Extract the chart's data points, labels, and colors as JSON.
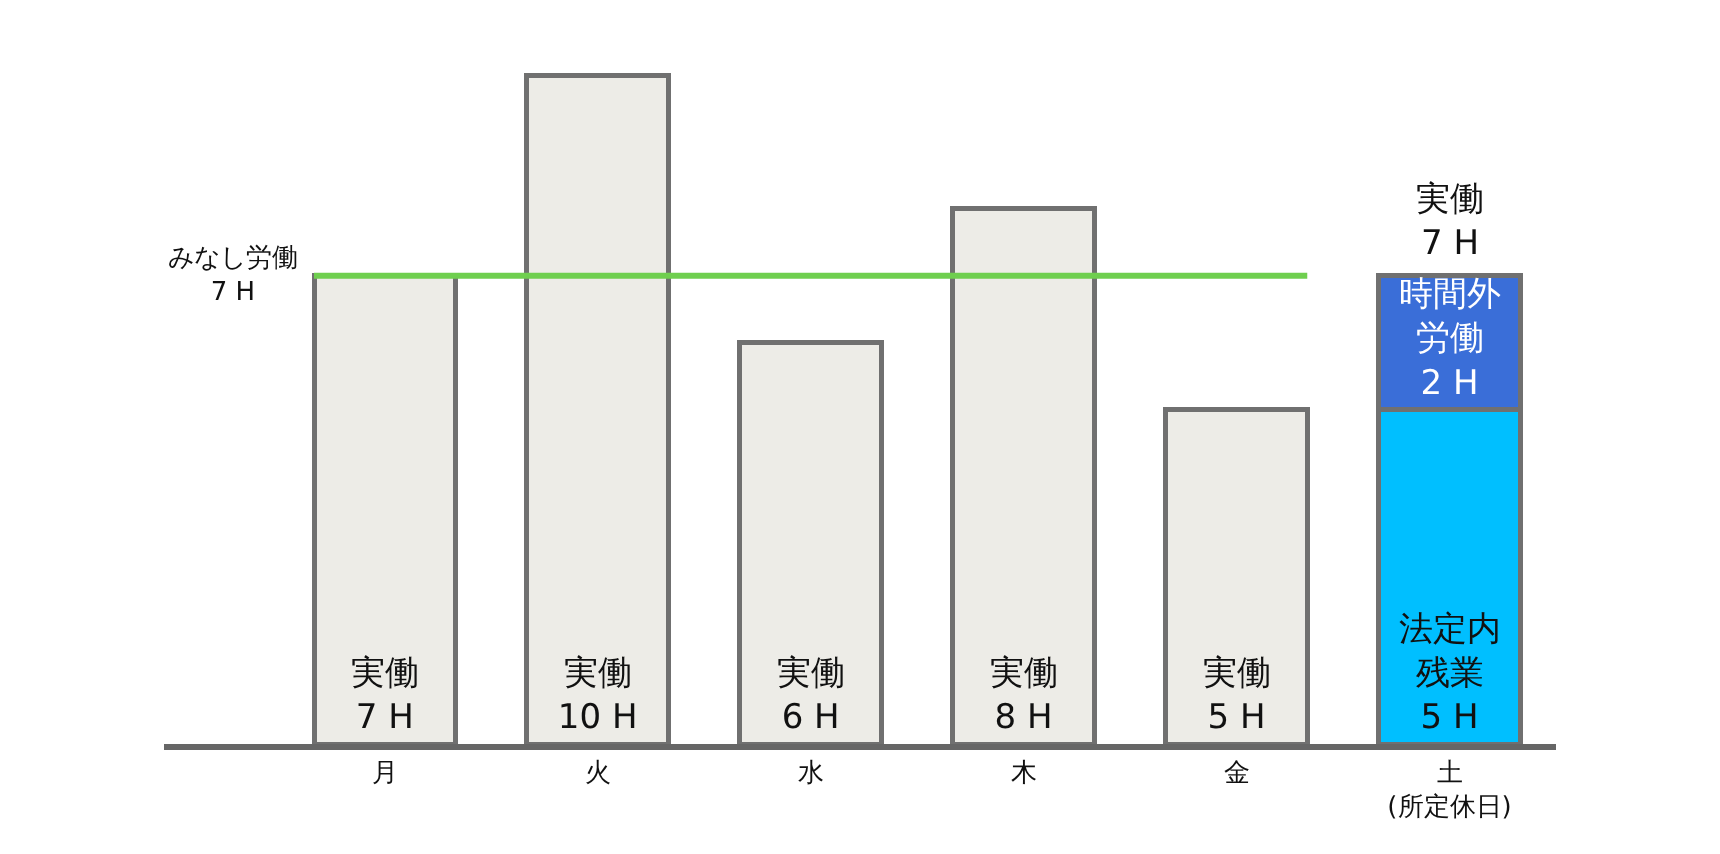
{
  "chart_data": {
    "type": "bar",
    "categories": [
      "月",
      "火",
      "水",
      "木",
      "金",
      "土\n(所定休日)"
    ],
    "stacked": true,
    "series": [
      {
        "color": "#edece7",
        "values": [
          7,
          10,
          6,
          8,
          5,
          null
        ],
        "value_labels": [
          "実働\n7 H",
          "実働\n10 H",
          "実働\n6 H",
          "実働\n8 H",
          "実働\n5 H",
          null
        ]
      },
      {
        "color": "#00bfff",
        "values": [
          null,
          null,
          null,
          null,
          null,
          5
        ],
        "value_labels": [
          null,
          null,
          null,
          null,
          null,
          "法定内残業\n5 H"
        ]
      },
      {
        "color": "#3a6ed8",
        "values": [
          null,
          null,
          null,
          null,
          null,
          2
        ],
        "value_labels": [
          null,
          null,
          null,
          null,
          null,
          "時間外労働\n2 H"
        ]
      }
    ],
    "totals": [
      null,
      null,
      null,
      null,
      null,
      "実働\n7 H"
    ],
    "ref_lines": [
      {
        "axis": "y",
        "value": 7,
        "label": "みなし労働\n7 H",
        "color": "#6fcf4f"
      }
    ],
    "tick_labels": "x"
  }
}
